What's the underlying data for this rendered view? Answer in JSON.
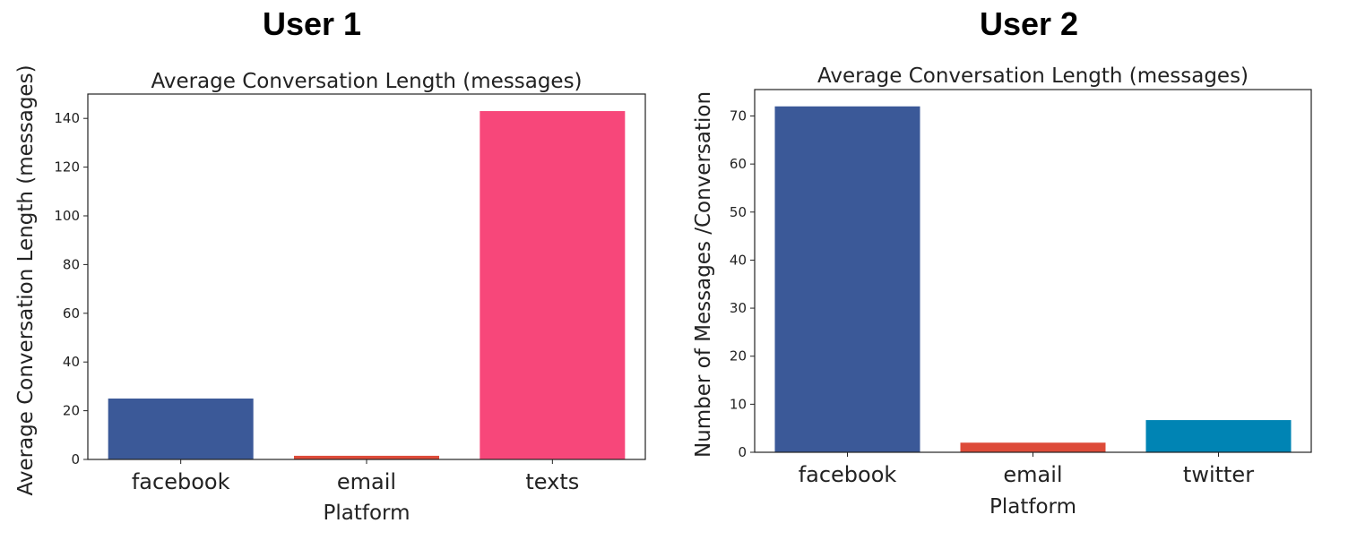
{
  "panels": [
    {
      "heading": "User 1"
    },
    {
      "heading": "User 2"
    }
  ],
  "chart_data": [
    {
      "type": "bar",
      "title": "Average Conversation Length (messages)",
      "xlabel": "Platform",
      "ylabel": "Average Conversation Length (messages)",
      "categories": [
        "facebook",
        "email",
        "texts"
      ],
      "values": [
        25,
        1.5,
        143
      ],
      "colors": [
        "#3b5998",
        "#dd4b39",
        "#f7477a"
      ],
      "ylim": [
        0,
        150
      ],
      "yticks": [
        0,
        20,
        40,
        60,
        80,
        100,
        120,
        140
      ],
      "grid": false
    },
    {
      "type": "bar",
      "title": "Average Conversation Length (messages)",
      "xlabel": "Platform",
      "ylabel": "Number of Messages /Conversation",
      "categories": [
        "facebook",
        "email",
        "twitter"
      ],
      "values": [
        72,
        2,
        6.7
      ],
      "colors": [
        "#3b5998",
        "#dd4b39",
        "#0084b4"
      ],
      "ylim": [
        0,
        75.5
      ],
      "yticks": [
        0,
        10,
        20,
        30,
        40,
        50,
        60,
        70
      ],
      "grid": false
    }
  ]
}
